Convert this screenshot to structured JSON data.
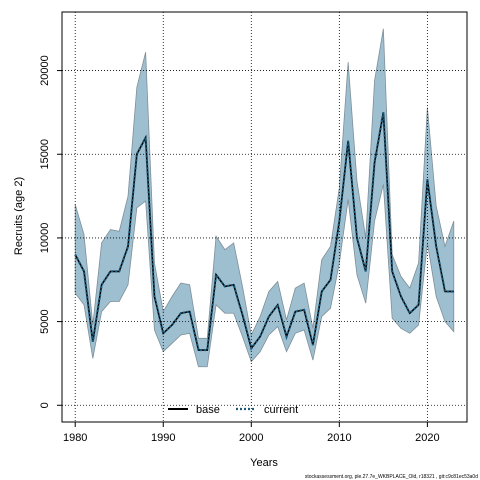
{
  "chart_data": {
    "type": "line",
    "xlabel": "Years",
    "ylabel": "Recruits (age 2)",
    "xlim": [
      1978.5,
      2024.5
    ],
    "ylim": [
      -1000,
      23500
    ],
    "x_ticks": [
      1980,
      1990,
      2000,
      2010,
      2020
    ],
    "y_ticks": [
      0,
      5000,
      10000,
      15000,
      20000
    ],
    "grid": true,
    "legend_position": "bottom-center",
    "x": [
      1980,
      1981,
      1982,
      1983,
      1984,
      1985,
      1986,
      1987,
      1988,
      1989,
      1990,
      1991,
      1992,
      1993,
      1994,
      1995,
      1996,
      1997,
      1998,
      1999,
      2000,
      2001,
      2002,
      2003,
      2004,
      2005,
      2006,
      2007,
      2008,
      2009,
      2010,
      2011,
      2012,
      2013,
      2014,
      2015,
      2016,
      2017,
      2018,
      2019,
      2020,
      2021,
      2022,
      2023
    ],
    "series": [
      {
        "name": "base",
        "color": "#000000",
        "style": "solid",
        "values": [
          9000,
          8000,
          3800,
          7200,
          8000,
          8000,
          9500,
          15000,
          16000,
          6500,
          4300,
          4800,
          5500,
          5600,
          3300,
          3300,
          7800,
          7100,
          7200,
          5400,
          3400,
          4100,
          5300,
          6000,
          4100,
          5600,
          5700,
          3600,
          6800,
          7500,
          11000,
          15800,
          10000,
          8000,
          14500,
          17500,
          8000,
          6500,
          5500,
          6000,
          13500,
          9500,
          6800,
          6800
        ]
      },
      {
        "name": "current",
        "color": "#1a5a7a",
        "style": "dotted",
        "values": [
          9000,
          8000,
          3800,
          7200,
          8000,
          8000,
          9500,
          15000,
          16000,
          6500,
          4300,
          4800,
          5500,
          5600,
          3300,
          3300,
          7800,
          7100,
          7200,
          5400,
          3400,
          4100,
          5300,
          6000,
          4100,
          5600,
          5700,
          3600,
          6800,
          7500,
          11000,
          15800,
          10000,
          8000,
          14500,
          17500,
          8000,
          6500,
          5500,
          6000,
          13500,
          9500,
          6800,
          6800
        ]
      }
    ],
    "band": {
      "fill": "#9dbfd0",
      "upper": [
        12000,
        10200,
        4800,
        9700,
        10500,
        10400,
        12500,
        19000,
        21100,
        8500,
        5600,
        6500,
        7300,
        7200,
        4000,
        4000,
        10100,
        9300,
        9700,
        7100,
        4200,
        5300,
        6800,
        7400,
        5100,
        7000,
        7300,
        4600,
        8700,
        9500,
        13000,
        20500,
        13400,
        10000,
        19400,
        22500,
        9000,
        7700,
        7000,
        8500,
        17800,
        11900,
        9500,
        11000
      ],
      "lower": [
        6700,
        6000,
        2800,
        5600,
        6200,
        6200,
        7200,
        11800,
        12200,
        4500,
        3200,
        3700,
        4200,
        4300,
        2300,
        2300,
        6000,
        5500,
        5500,
        4100,
        2600,
        3200,
        4200,
        4700,
        3200,
        4300,
        4500,
        2700,
        5300,
        5800,
        8500,
        12300,
        7800,
        6100,
        11000,
        13200,
        5200,
        4600,
        4300,
        4800,
        9700,
        6500,
        5000,
        4400
      ]
    }
  },
  "footer": {
    "text": "stockassessment.org, ple.27.7e_WKBPLACE_Old, r18321 , git:c9c81ec53a0d"
  }
}
